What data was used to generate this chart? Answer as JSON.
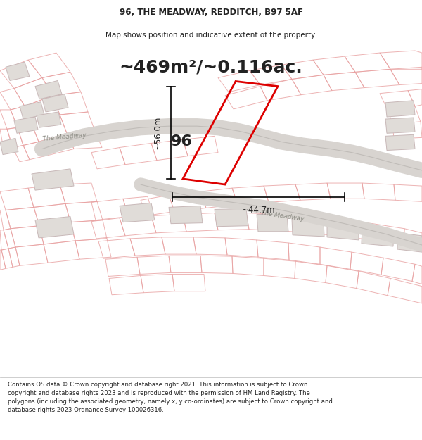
{
  "title_line1": "96, THE MEADWAY, REDDITCH, B97 5AF",
  "title_line2": "Map shows position and indicative extent of the property.",
  "area_text": "~469m²/~0.116ac.",
  "label_96": "96",
  "dim_vertical": "~56.0m",
  "dim_horizontal": "~44.7m",
  "road_label_left": "The Meadway",
  "road_label_bottom": "The Meadway",
  "footer_text": "Contains OS data © Crown copyright and database right 2021. This information is subject to Crown copyright and database rights 2023 and is reproduced with the permission of HM Land Registry. The polygons (including the associated geometry, namely x, y co-ordinates) are subject to Crown copyright and database rights 2023 Ordnance Survey 100026316.",
  "bg_color": "#ffffff",
  "map_bg": "#ffffff",
  "plot_color_edge": "#dd0000",
  "building_fill": "#e0dcd8",
  "building_edge": "#c8b8b8",
  "road_fill": "#d8d4d0",
  "road_outline": "#c0bcb8",
  "parcel_outline": "#e8a0a0",
  "dim_line_color": "#000000",
  "text_color_dark": "#222222",
  "road_text_color": "#888880",
  "footer_bg": "#ffffff",
  "area_text_size": 18,
  "label_96_size": 16
}
